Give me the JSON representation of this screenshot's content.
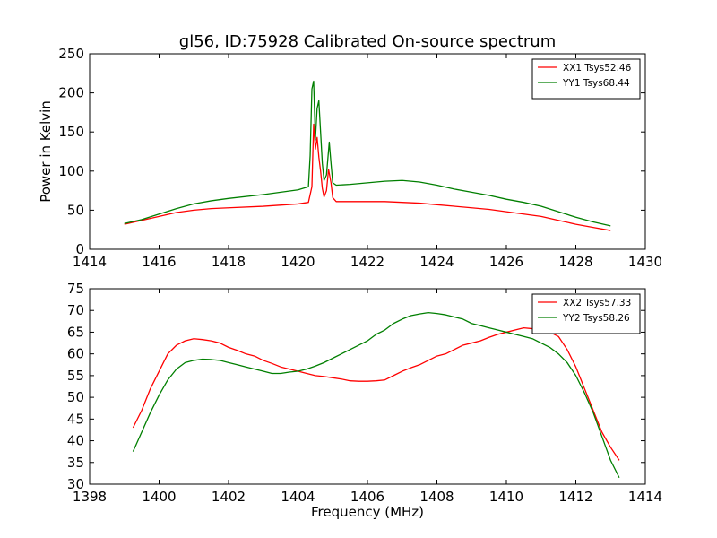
{
  "chart_data": [
    {
      "type": "line",
      "title": "gl56, ID:75928 Calibrated On-source spectrum",
      "xlabel": "",
      "ylabel": "Power in Kelvin",
      "xlim": [
        1414,
        1430
      ],
      "ylim": [
        0,
        250
      ],
      "xticks": [
        1414,
        1416,
        1418,
        1420,
        1422,
        1424,
        1426,
        1428,
        1430
      ],
      "yticks": [
        0,
        50,
        100,
        150,
        200,
        250
      ],
      "grid": false,
      "legend_position": "top-right",
      "series": [
        {
          "name": "XX1 Tsys52.46",
          "color": "#ff0000",
          "points": [
            [
              1415.0,
              32
            ],
            [
              1415.5,
              37
            ],
            [
              1416.0,
              42
            ],
            [
              1416.5,
              47
            ],
            [
              1417.0,
              50
            ],
            [
              1417.5,
              52
            ],
            [
              1418.0,
              53
            ],
            [
              1419.0,
              55
            ],
            [
              1420.0,
              58
            ],
            [
              1420.3,
              60
            ],
            [
              1420.4,
              80
            ],
            [
              1420.45,
              160
            ],
            [
              1420.5,
              128
            ],
            [
              1420.55,
              143
            ],
            [
              1420.6,
              118
            ],
            [
              1420.65,
              100
            ],
            [
              1420.7,
              78
            ],
            [
              1420.75,
              67
            ],
            [
              1420.82,
              75
            ],
            [
              1420.88,
              102
            ],
            [
              1420.95,
              85
            ],
            [
              1421.0,
              66
            ],
            [
              1421.1,
              61
            ],
            [
              1422.0,
              61
            ],
            [
              1422.5,
              61
            ],
            [
              1423.0,
              60
            ],
            [
              1423.5,
              59
            ],
            [
              1424.0,
              57
            ],
            [
              1424.5,
              55
            ],
            [
              1425.0,
              53
            ],
            [
              1425.5,
              51
            ],
            [
              1426.0,
              48
            ],
            [
              1426.5,
              45
            ],
            [
              1427.0,
              42
            ],
            [
              1427.5,
              37
            ],
            [
              1428.0,
              32
            ],
            [
              1428.5,
              28
            ],
            [
              1429.0,
              24
            ]
          ]
        },
        {
          "name": "YY1 Tsys68.44",
          "color": "#007f00",
          "points": [
            [
              1415.0,
              33
            ],
            [
              1415.5,
              38
            ],
            [
              1416.0,
              45
            ],
            [
              1416.5,
              52
            ],
            [
              1417.0,
              58
            ],
            [
              1417.5,
              62
            ],
            [
              1418.0,
              65
            ],
            [
              1419.0,
              70
            ],
            [
              1420.0,
              76
            ],
            [
              1420.3,
              80
            ],
            [
              1420.35,
              120
            ],
            [
              1420.4,
              205
            ],
            [
              1420.45,
              215
            ],
            [
              1420.5,
              140
            ],
            [
              1420.55,
              180
            ],
            [
              1420.6,
              190
            ],
            [
              1420.65,
              150
            ],
            [
              1420.7,
              110
            ],
            [
              1420.75,
              88
            ],
            [
              1420.82,
              95
            ],
            [
              1420.9,
              137
            ],
            [
              1420.95,
              110
            ],
            [
              1421.0,
              85
            ],
            [
              1421.1,
              82
            ],
            [
              1421.5,
              83
            ],
            [
              1422.0,
              85
            ],
            [
              1422.5,
              87
            ],
            [
              1423.0,
              88
            ],
            [
              1423.5,
              86
            ],
            [
              1424.0,
              82
            ],
            [
              1424.5,
              77
            ],
            [
              1425.0,
              73
            ],
            [
              1425.5,
              69
            ],
            [
              1426.0,
              64
            ],
            [
              1426.5,
              60
            ],
            [
              1427.0,
              55
            ],
            [
              1427.5,
              48
            ],
            [
              1428.0,
              41
            ],
            [
              1428.5,
              35
            ],
            [
              1429.0,
              30
            ]
          ]
        }
      ]
    },
    {
      "type": "line",
      "title": "",
      "xlabel": "Frequency (MHz)",
      "ylabel": "",
      "xlim": [
        1398,
        1414
      ],
      "ylim": [
        30,
        75
      ],
      "xticks": [
        1398,
        1400,
        1402,
        1404,
        1406,
        1408,
        1410,
        1412,
        1414
      ],
      "yticks": [
        30,
        35,
        40,
        45,
        50,
        55,
        60,
        65,
        70,
        75
      ],
      "grid": false,
      "legend_position": "top-right",
      "series": [
        {
          "name": "XX2 Tsys57.33",
          "color": "#ff0000",
          "points": [
            [
              1399.25,
              43
            ],
            [
              1399.5,
              47
            ],
            [
              1399.75,
              52
            ],
            [
              1400.0,
              56
            ],
            [
              1400.25,
              60
            ],
            [
              1400.5,
              62
            ],
            [
              1400.75,
              63
            ],
            [
              1401.0,
              63.5
            ],
            [
              1401.25,
              63.3
            ],
            [
              1401.5,
              63
            ],
            [
              1401.75,
              62.5
            ],
            [
              1402.0,
              61.5
            ],
            [
              1402.25,
              60.8
            ],
            [
              1402.5,
              60
            ],
            [
              1402.75,
              59.5
            ],
            [
              1403.0,
              58.5
            ],
            [
              1403.25,
              57.8
            ],
            [
              1403.5,
              57
            ],
            [
              1403.75,
              56.5
            ],
            [
              1404.0,
              56
            ],
            [
              1404.25,
              55.5
            ],
            [
              1404.5,
              55
            ],
            [
              1404.75,
              54.8
            ],
            [
              1405.0,
              54.5
            ],
            [
              1405.25,
              54.2
            ],
            [
              1405.5,
              53.8
            ],
            [
              1405.75,
              53.7
            ],
            [
              1406.0,
              53.7
            ],
            [
              1406.25,
              53.8
            ],
            [
              1406.5,
              54
            ],
            [
              1406.75,
              55
            ],
            [
              1407.0,
              56
            ],
            [
              1407.25,
              56.8
            ],
            [
              1407.5,
              57.5
            ],
            [
              1407.75,
              58.5
            ],
            [
              1408.0,
              59.5
            ],
            [
              1408.25,
              60
            ],
            [
              1408.5,
              61
            ],
            [
              1408.75,
              62
            ],
            [
              1409.0,
              62.5
            ],
            [
              1409.25,
              63
            ],
            [
              1409.5,
              63.8
            ],
            [
              1409.75,
              64.5
            ],
            [
              1410.0,
              65
            ],
            [
              1410.25,
              65.5
            ],
            [
              1410.5,
              66
            ],
            [
              1410.75,
              65.8
            ],
            [
              1411.0,
              65.5
            ],
            [
              1411.25,
              65
            ],
            [
              1411.5,
              64
            ],
            [
              1411.75,
              61
            ],
            [
              1412.0,
              57
            ],
            [
              1412.25,
              52
            ],
            [
              1412.5,
              47
            ],
            [
              1412.75,
              42
            ],
            [
              1413.0,
              38.5
            ],
            [
              1413.25,
              35.5
            ]
          ]
        },
        {
          "name": "YY2 Tsys58.26",
          "color": "#007f00",
          "points": [
            [
              1399.25,
              37.5
            ],
            [
              1399.5,
              42
            ],
            [
              1399.75,
              46.5
            ],
            [
              1400.0,
              50.5
            ],
            [
              1400.25,
              54
            ],
            [
              1400.5,
              56.5
            ],
            [
              1400.75,
              58
            ],
            [
              1401.0,
              58.5
            ],
            [
              1401.25,
              58.8
            ],
            [
              1401.5,
              58.7
            ],
            [
              1401.75,
              58.5
            ],
            [
              1402.0,
              58
            ],
            [
              1402.25,
              57.5
            ],
            [
              1402.5,
              57
            ],
            [
              1402.75,
              56.5
            ],
            [
              1403.0,
              56
            ],
            [
              1403.25,
              55.5
            ],
            [
              1403.5,
              55.5
            ],
            [
              1403.75,
              55.8
            ],
            [
              1404.0,
              56
            ],
            [
              1404.25,
              56.5
            ],
            [
              1404.5,
              57.2
            ],
            [
              1404.75,
              58
            ],
            [
              1405.0,
              59
            ],
            [
              1405.25,
              60
            ],
            [
              1405.5,
              61
            ],
            [
              1405.75,
              62
            ],
            [
              1406.0,
              63
            ],
            [
              1406.25,
              64.5
            ],
            [
              1406.5,
              65.5
            ],
            [
              1406.75,
              67
            ],
            [
              1407.0,
              68
            ],
            [
              1407.25,
              68.8
            ],
            [
              1407.5,
              69.2
            ],
            [
              1407.75,
              69.5
            ],
            [
              1408.0,
              69.3
            ],
            [
              1408.25,
              69
            ],
            [
              1408.5,
              68.5
            ],
            [
              1408.75,
              68
            ],
            [
              1409.0,
              67
            ],
            [
              1409.25,
              66.5
            ],
            [
              1409.5,
              66
            ],
            [
              1409.75,
              65.5
            ],
            [
              1410.0,
              65
            ],
            [
              1410.25,
              64.5
            ],
            [
              1410.5,
              64
            ],
            [
              1410.75,
              63.5
            ],
            [
              1411.0,
              62.5
            ],
            [
              1411.25,
              61.5
            ],
            [
              1411.5,
              60
            ],
            [
              1411.75,
              58
            ],
            [
              1412.0,
              55
            ],
            [
              1412.25,
              51
            ],
            [
              1412.5,
              46.5
            ],
            [
              1412.75,
              41
            ],
            [
              1413.0,
              35.5
            ],
            [
              1413.25,
              31.5
            ]
          ]
        }
      ]
    }
  ]
}
